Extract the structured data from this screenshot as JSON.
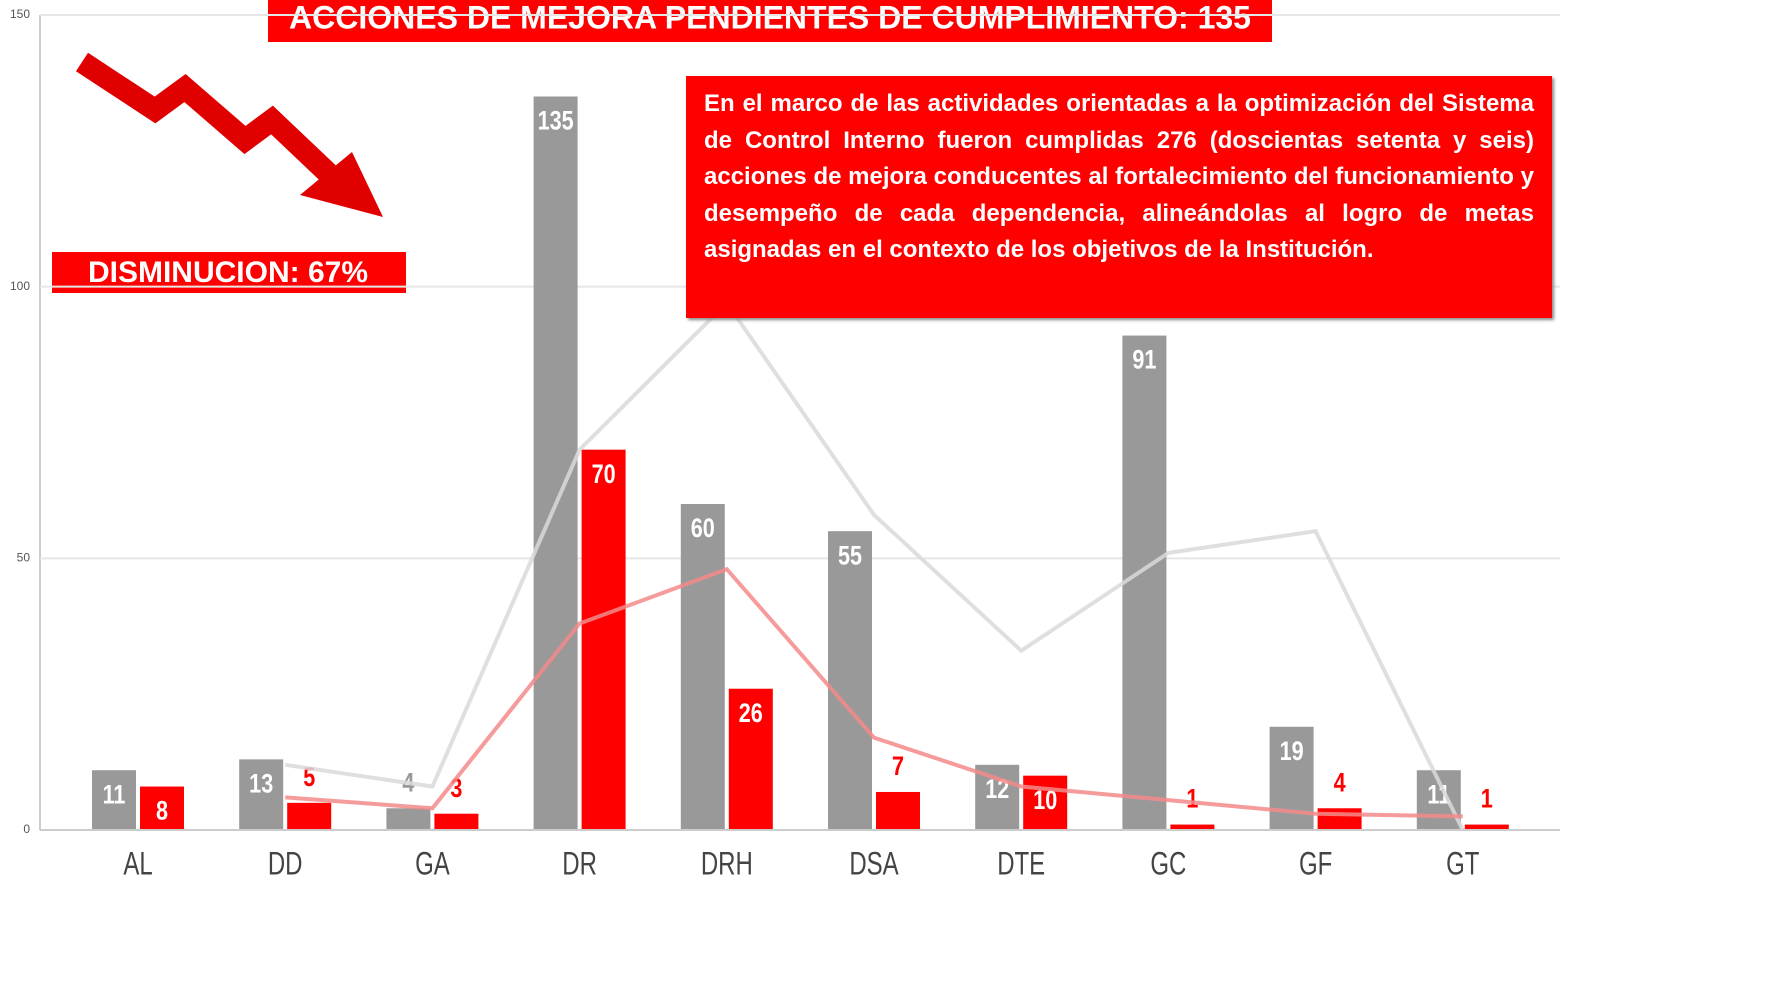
{
  "chart_data": {
    "type": "bar",
    "title": "ACCIONES DE MEJORA PENDIENTES DE CUMPLIMIENTO: 135",
    "annotations": [
      "DISMINUCION: 67%",
      "En el marco de las actividades orientadas a la optimización del Sistema de Control Interno fueron cumplidas 276 (doscientas setenta y seis) acciones de mejora conducentes al fortalecimiento del funcionamiento y desempeño de cada dependencia, alineándolas al logro de metas asignadas en el contexto de los objetivos de la Institución."
    ],
    "categories": [
      "AL",
      "DD",
      "GA",
      "DR",
      "DRH",
      "DSA",
      "DTE",
      "GC",
      "GF",
      "GT"
    ],
    "series": [
      {
        "color": "#999999",
        "values": [
          11,
          13,
          4,
          135,
          60,
          55,
          12,
          91,
          19,
          11
        ]
      },
      {
        "color": "#ff0000",
        "values": [
          8,
          5,
          3,
          70,
          26,
          7,
          10,
          1,
          4,
          1
        ]
      }
    ],
    "trend_lines": [
      {
        "color": "#d9d9d9",
        "values": [
          null,
          12,
          8,
          70,
          97,
          58,
          33,
          51,
          55,
          0
        ]
      },
      {
        "color": "#f58a8a",
        "values": [
          null,
          6,
          4,
          38,
          48,
          17,
          8,
          5.5,
          3,
          2.5
        ]
      }
    ],
    "ylim": [
      0,
      150
    ],
    "yticks": [
      0,
      50,
      100,
      150
    ],
    "grid": true
  }
}
